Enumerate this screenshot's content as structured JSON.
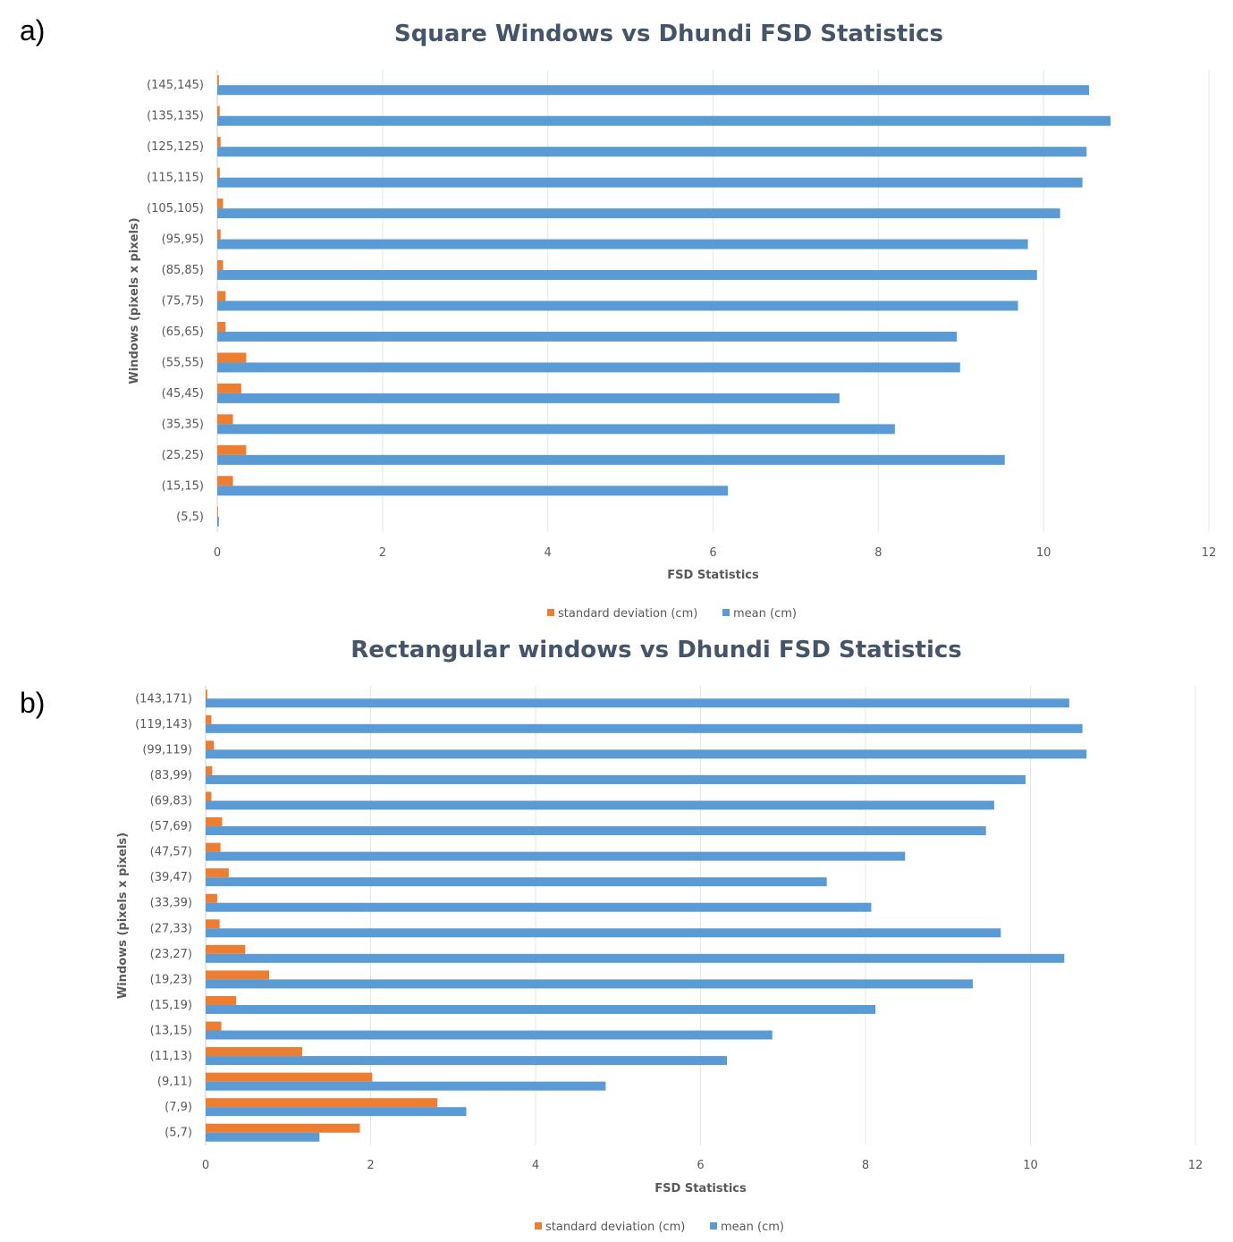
{
  "panels": {
    "a": "a)",
    "b": "b)"
  },
  "chart_data": [
    {
      "type": "bar",
      "orientation": "horizontal",
      "title": "Square Windows vs Dhundi FSD Statistics",
      "xlabel": "FSD Statistics",
      "ylabel": "Windows (pixels x pixels)",
      "xlim": [
        0,
        12
      ],
      "xticks": [
        "0",
        "2",
        "4",
        "6",
        "8",
        "10",
        "12"
      ],
      "grid": true,
      "legend": "bottom",
      "categories": [
        "(5,5)",
        "(15,15)",
        "(25,25)",
        "(35,35)",
        "(45,45)",
        "(55,55)",
        "(65,65)",
        "(75,75)",
        "(85,85)",
        "(95,95)",
        "(105,105)",
        "(115,115)",
        "(125,125)",
        "(135,135)",
        "(145,145)"
      ],
      "series": [
        {
          "name": "standard deviation (cm)",
          "color": "#ed7d31",
          "values": [
            0.01,
            0.19,
            0.35,
            0.19,
            0.29,
            0.35,
            0.1,
            0.1,
            0.07,
            0.04,
            0.07,
            0.03,
            0.04,
            0.03,
            0.02
          ]
        },
        {
          "name": "mean (cm)",
          "color": "#5b9bd5",
          "values": [
            0.02,
            6.18,
            9.53,
            8.2,
            7.53,
            8.99,
            8.95,
            9.69,
            9.92,
            9.81,
            10.2,
            10.47,
            10.52,
            10.81,
            10.55
          ]
        }
      ]
    },
    {
      "type": "bar",
      "orientation": "horizontal",
      "title": "Rectangular windows vs Dhundi FSD Statistics",
      "xlabel": "FSD Statistics",
      "ylabel": "Windows (pixels x pixels)",
      "xlim": [
        0,
        12
      ],
      "xticks": [
        "0",
        "2",
        "4",
        "6",
        "8",
        "10",
        "12"
      ],
      "grid": true,
      "legend": "bottom",
      "categories": [
        "(5,7)",
        "(7,9)",
        "(9,11)",
        "(11,13)",
        "(13,15)",
        "(15,19)",
        "(19,23)",
        "(23,27)",
        "(27,33)",
        "(33,39)",
        "(39,47)",
        "(47,57)",
        "(57,69)",
        "(69,83)",
        "(83,99)",
        "(99,119)",
        "(119,143)",
        "(143,171)"
      ],
      "series": [
        {
          "name": "standard deviation (cm)",
          "color": "#ed7d31",
          "values": [
            1.87,
            2.81,
            2.02,
            1.17,
            0.19,
            0.37,
            0.77,
            0.48,
            0.17,
            0.14,
            0.28,
            0.18,
            0.2,
            0.07,
            0.08,
            0.1,
            0.07,
            0.02
          ]
        },
        {
          "name": "mean (cm)",
          "color": "#5b9bd5",
          "values": [
            1.38,
            3.16,
            4.85,
            6.32,
            6.87,
            8.12,
            9.3,
            10.41,
            9.64,
            8.07,
            7.53,
            8.48,
            9.46,
            9.56,
            9.94,
            10.68,
            10.63,
            10.47
          ]
        }
      ]
    }
  ]
}
